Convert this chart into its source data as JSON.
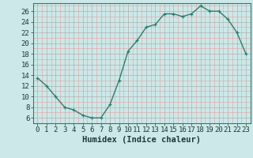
{
  "x": [
    0,
    1,
    2,
    3,
    4,
    5,
    6,
    7,
    8,
    9,
    10,
    11,
    12,
    13,
    14,
    15,
    16,
    17,
    18,
    19,
    20,
    21,
    22,
    23
  ],
  "y": [
    13.5,
    12,
    10,
    8,
    7.5,
    6.5,
    6,
    6,
    8.5,
    13,
    18.5,
    20.5,
    23,
    23.5,
    25.5,
    25.5,
    25,
    25.5,
    27,
    26,
    26,
    24.5,
    22,
    18
  ],
  "line_color": "#2e7d6e",
  "marker_color": "#2e7d6e",
  "bg_color": "#cce8e8",
  "major_grid_color": "#b0b0b0",
  "minor_grid_color": "#e8a0a0",
  "xlabel": "Humidex (Indice chaleur)",
  "ylim_min": 5,
  "ylim_max": 27.5,
  "xlim_min": -0.5,
  "xlim_max": 23.5,
  "yticks": [
    6,
    8,
    10,
    12,
    14,
    16,
    18,
    20,
    22,
    24,
    26
  ],
  "xticks": [
    0,
    1,
    2,
    3,
    4,
    5,
    6,
    7,
    8,
    9,
    10,
    11,
    12,
    13,
    14,
    15,
    16,
    17,
    18,
    19,
    20,
    21,
    22,
    23
  ],
  "xlabel_fontsize": 7.5,
  "tick_fontsize": 6.5,
  "line_width": 1.0,
  "marker_size": 3.5,
  "spine_color": "#2e7d6e"
}
